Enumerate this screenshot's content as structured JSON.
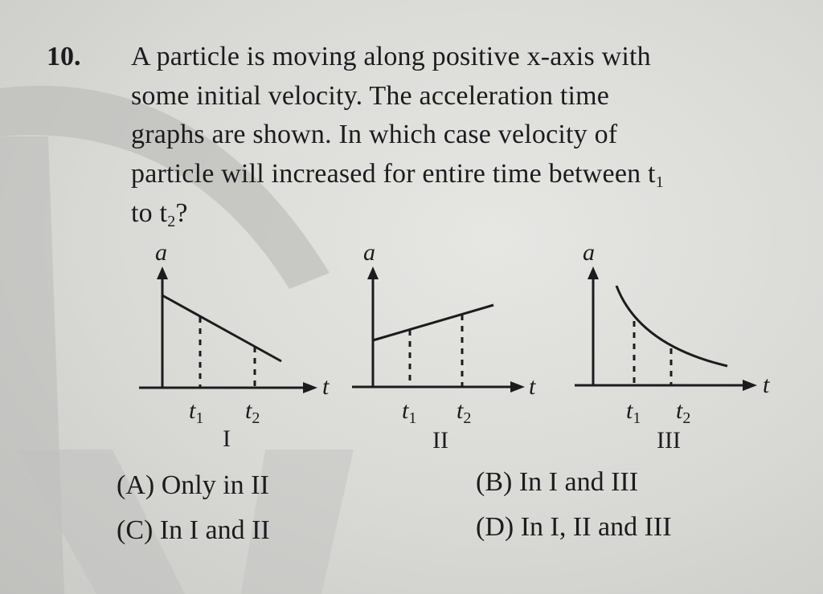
{
  "question": {
    "number": "10.",
    "lines": [
      "A particle is moving along positive x-axis with",
      "some initial velocity. The acceleration time",
      "graphs are shown. In which case velocity of",
      "particle will increased for entire time between t",
      "to t"
    ],
    "sub1": "1",
    "sub2": "2",
    "end": "?"
  },
  "graphs": [
    {
      "roman": "I",
      "y_axis": "a",
      "x_axis": "t",
      "t1": "t",
      "t2": "t",
      "s1": "1",
      "s2": "2",
      "shape": "decreasing-line"
    },
    {
      "roman": "II",
      "y_axis": "a",
      "x_axis": "t",
      "t1": "t",
      "t2": "t",
      "s1": "1",
      "s2": "2",
      "shape": "increasing-line"
    },
    {
      "roman": "III",
      "y_axis": "a",
      "x_axis": "t",
      "t1": "t",
      "t2": "t",
      "s1": "1",
      "s2": "2",
      "shape": "decreasing-curve"
    }
  ],
  "options": [
    {
      "key": "(A)",
      "text": "Only in II"
    },
    {
      "key": "(B)",
      "text": "In I and III"
    },
    {
      "key": "(C)",
      "text": "In I and II"
    },
    {
      "key": "(D)",
      "text": "In I, II and III"
    }
  ],
  "colors": {
    "ink": "#1c1c1e",
    "paper": "#dcdcd9"
  }
}
